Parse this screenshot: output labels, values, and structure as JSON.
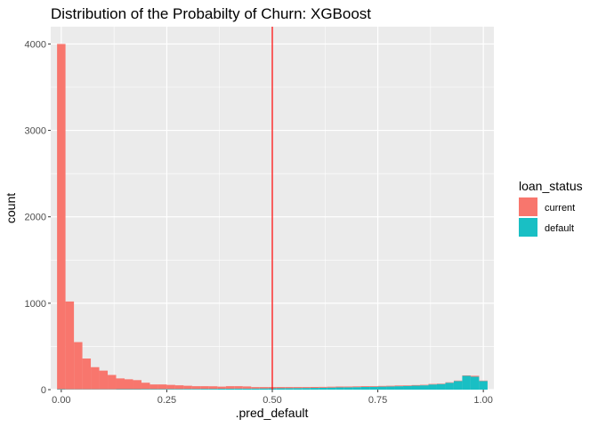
{
  "chart_data": {
    "type": "bar",
    "subtype": "stacked-histogram",
    "title": "Distribution of the Probabilty of Churn: XGBoost",
    "xlabel": ".pred_default",
    "ylabel": "count",
    "xlim": [
      -0.025,
      1.025
    ],
    "ylim": [
      0,
      4200
    ],
    "x_ticks": [
      0.0,
      0.25,
      0.5,
      0.75,
      1.0
    ],
    "x_tick_labels": [
      "0.00",
      "0.25",
      "0.50",
      "0.75",
      "1.00"
    ],
    "y_ticks": [
      0,
      1000,
      2000,
      3000,
      4000
    ],
    "y_tick_labels": [
      "0",
      "1000",
      "2000",
      "3000",
      "4000"
    ],
    "grid": true,
    "background": "#ebebeb",
    "bin_width": 0.02,
    "bin_centers": [
      0.0,
      0.02,
      0.04,
      0.06,
      0.08,
      0.1,
      0.12,
      0.14,
      0.16,
      0.18,
      0.2,
      0.22,
      0.24,
      0.26,
      0.28,
      0.3,
      0.32,
      0.34,
      0.36,
      0.38,
      0.4,
      0.42,
      0.44,
      0.46,
      0.48,
      0.5,
      0.52,
      0.54,
      0.56,
      0.58,
      0.6,
      0.62,
      0.64,
      0.66,
      0.68,
      0.7,
      0.72,
      0.74,
      0.76,
      0.78,
      0.8,
      0.82,
      0.84,
      0.86,
      0.88,
      0.9,
      0.92,
      0.94,
      0.96,
      0.98,
      1.0
    ],
    "series": [
      {
        "name": "default",
        "color": "#19BFC4",
        "values": [
          5,
          4,
          4,
          4,
          4,
          4,
          4,
          5,
          5,
          5,
          6,
          6,
          6,
          7,
          7,
          8,
          8,
          9,
          9,
          10,
          11,
          12,
          12,
          13,
          14,
          15,
          16,
          17,
          18,
          19,
          20,
          22,
          24,
          26,
          27,
          29,
          31,
          33,
          35,
          37,
          40,
          43,
          46,
          50,
          60,
          65,
          80,
          100,
          160,
          150,
          100
        ]
      },
      {
        "name": "current",
        "color": "#F8766D",
        "values": [
          3995,
          1016,
          546,
          356,
          256,
          216,
          166,
          125,
          115,
          105,
          74,
          54,
          54,
          48,
          43,
          37,
          32,
          31,
          30,
          25,
          29,
          28,
          25,
          17,
          16,
          15,
          14,
          13,
          12,
          11,
          11,
          10,
          10,
          10,
          9,
          9,
          9,
          8,
          8,
          8,
          8,
          7,
          7,
          6,
          6,
          5,
          5,
          5,
          5,
          10,
          5
        ]
      }
    ],
    "vline": {
      "x": 0.5,
      "color": "#FF0000"
    },
    "legend": {
      "title": "loan_status",
      "position": "right",
      "entries": [
        {
          "label": "current",
          "color": "#F8766D"
        },
        {
          "label": "default",
          "color": "#19BFC4"
        }
      ]
    }
  }
}
